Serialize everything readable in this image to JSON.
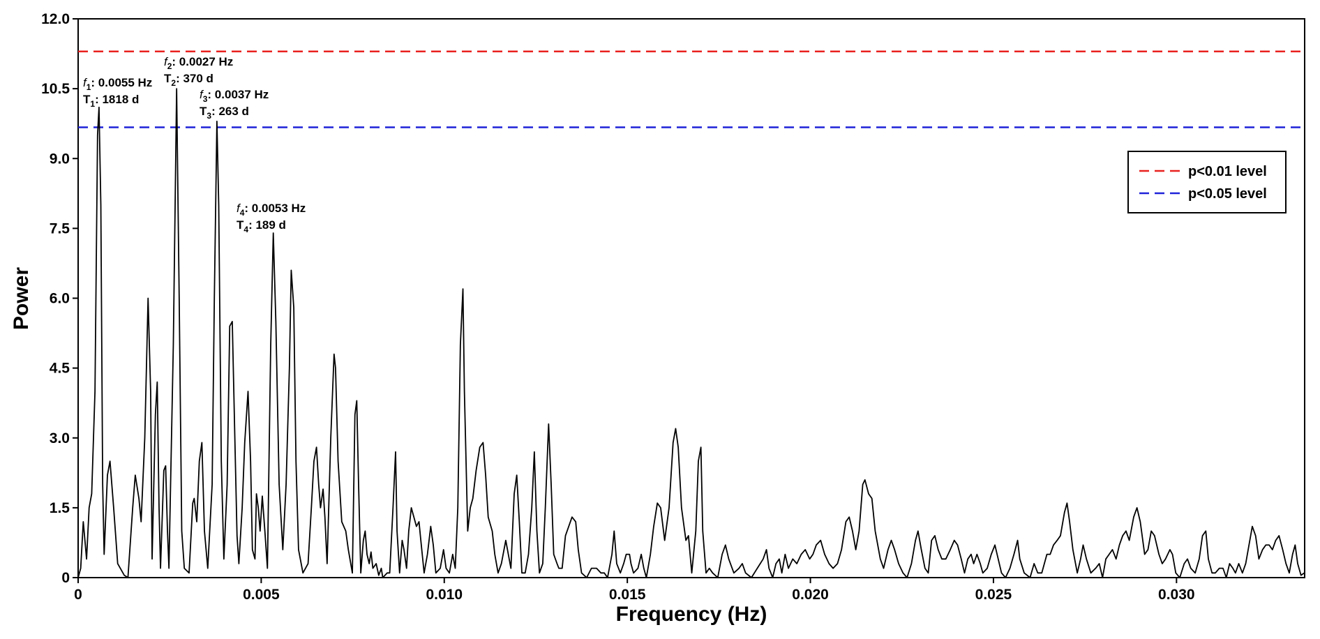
{
  "chart_data": {
    "type": "line",
    "xlabel": "Frequency (Hz)",
    "ylabel": "Power",
    "xlim": [
      0,
      0.0335
    ],
    "ylim": [
      0,
      12
    ],
    "xticks": [
      0,
      0.005,
      {
        "value": 0.01,
        "label": "0.010"
      },
      0.015,
      {
        "value": 0.02,
        "label": "0.020"
      },
      0.025,
      {
        "value": 0.03,
        "label": "0.030"
      }
    ],
    "yticks": [
      0,
      1.5,
      {
        "value": 3,
        "label": "3.0"
      },
      4.5,
      {
        "value": 6,
        "label": "6.0"
      },
      7.5,
      {
        "value": 9,
        "label": "9.0"
      },
      10.5,
      {
        "value": 12,
        "label": "12.0"
      }
    ],
    "color": "#000000",
    "x": [
      0,
      7e-05,
      0.00014,
      0.00023,
      0.0003,
      0.00037,
      0.00046,
      0.00053,
      0.00057,
      0.00062,
      0.00067,
      0.00071,
      0.0008,
      0.00087,
      0.00097,
      0.00108,
      0.00126,
      0.00136,
      0.00149,
      0.00156,
      0.00166,
      0.00172,
      0.00182,
      0.00191,
      0.00198,
      0.00202,
      0.00211,
      0.00216,
      0.00221,
      0.00225,
      0.00234,
      0.00239,
      0.00244,
      0.00248,
      0.0026,
      0.00269,
      0.00276,
      0.00283,
      0.0029,
      0.00303,
      0.00313,
      0.00317,
      0.00324,
      0.00331,
      0.00338,
      0.00345,
      0.00354,
      0.00366,
      0.00372,
      0.00379,
      0.00384,
      0.00391,
      0.00398,
      0.00407,
      0.00414,
      0.00421,
      0.00428,
      0.00434,
      0.00439,
      0.00448,
      0.00455,
      0.00464,
      0.00471,
      0.00476,
      0.00483,
      0.00487,
      0.00492,
      0.00497,
      0.00503,
      0.0051,
      0.00517,
      0.00526,
      0.00533,
      0.0054,
      0.00549,
      0.00559,
      0.00568,
      0.00577,
      0.00582,
      0.00589,
      0.00595,
      0.00602,
      0.00614,
      0.00628,
      0.00637,
      0.00644,
      0.00651,
      0.00657,
      0.00662,
      0.00669,
      0.00674,
      0.0068,
      0.0069,
      0.00699,
      0.00703,
      0.0071,
      0.0072,
      0.00731,
      0.00738,
      0.00749,
      0.00756,
      0.00761,
      0.00766,
      0.00772,
      0.00779,
      0.00784,
      0.00789,
      0.00795,
      0.008,
      0.00805,
      0.00814,
      0.00821,
      0.00828,
      0.00832,
      0.00844,
      0.00851,
      0.0086,
      0.00867,
      0.00871,
      0.00878,
      0.00885,
      0.0089,
      0.00897,
      0.00903,
      0.0091,
      0.00917,
      0.00924,
      0.00931,
      0.00936,
      0.00945,
      0.00954,
      0.00963,
      0.0097,
      0.00977,
      0.00989,
      0.00998,
      0.01005,
      0.01014,
      0.01023,
      0.0103,
      0.01037,
      0.01044,
      0.01051,
      0.01055,
      0.01064,
      0.01071,
      0.01078,
      0.01087,
      0.01097,
      0.01106,
      0.01113,
      0.0112,
      0.01131,
      0.01138,
      0.01147,
      0.01156,
      0.01168,
      0.01175,
      0.01182,
      0.01191,
      0.01198,
      0.01205,
      0.01212,
      0.01221,
      0.0123,
      0.01239,
      0.01246,
      0.01253,
      0.0126,
      0.01269,
      0.01276,
      0.01285,
      0.01292,
      0.01299,
      0.01308,
      0.01313,
      0.01322,
      0.01331,
      0.0134,
      0.01349,
      0.01359,
      0.01366,
      0.01375,
      0.01389,
      0.01402,
      0.01416,
      0.01428,
      0.01437,
      0.01446,
      0.01458,
      0.01464,
      0.01471,
      0.01481,
      0.0149,
      0.01497,
      0.01506,
      0.0151,
      0.01517,
      0.01529,
      0.01538,
      0.01545,
      0.01552,
      0.01563,
      0.01572,
      0.01582,
      0.01591,
      0.01602,
      0.01614,
      0.01625,
      0.01632,
      0.01639,
      0.01648,
      0.0166,
      0.01667,
      0.01676,
      0.01687,
      0.01694,
      0.01701,
      0.01706,
      0.01715,
      0.01724,
      0.01733,
      0.01747,
      0.01759,
      0.01768,
      0.01777,
      0.01791,
      0.01805,
      0.01814,
      0.01823,
      0.01839,
      0.01855,
      0.01871,
      0.0188,
      0.01887,
      0.01897,
      0.01906,
      0.01915,
      0.01922,
      0.01931,
      0.0194,
      0.01952,
      0.01963,
      0.01975,
      0.01986,
      0.01998,
      0.02007,
      0.02016,
      0.02028,
      0.02039,
      0.02051,
      0.02062,
      0.02074,
      0.02085,
      0.02097,
      0.02106,
      0.02115,
      0.02124,
      0.02133,
      0.02143,
      0.02149,
      0.02159,
      0.02168,
      0.02177,
      0.02191,
      0.022,
      0.02212,
      0.02221,
      0.0223,
      0.02241,
      0.02253,
      0.02264,
      0.02276,
      0.02287,
      0.02294,
      0.02303,
      0.02313,
      0.02322,
      0.02331,
      0.0234,
      0.02349,
      0.02359,
      0.0237,
      0.02382,
      0.02393,
      0.02402,
      0.02412,
      0.02421,
      0.0243,
      0.02439,
      0.02446,
      0.02455,
      0.02464,
      0.02471,
      0.02483,
      0.02494,
      0.02504,
      0.02513,
      0.02522,
      0.02533,
      0.02545,
      0.02556,
      0.02566,
      0.02572,
      0.02584,
      0.026,
      0.02611,
      0.02621,
      0.02632,
      0.02646,
      0.02655,
      0.02664,
      0.02674,
      0.02683,
      0.02694,
      0.02701,
      0.02708,
      0.02717,
      0.02729,
      0.02738,
      0.02745,
      0.02754,
      0.02766,
      0.02779,
      0.02789,
      0.02798,
      0.02807,
      0.02816,
      0.02825,
      0.02835,
      0.02844,
      0.02853,
      0.02862,
      0.02871,
      0.02883,
      0.02892,
      0.02901,
      0.02913,
      0.02922,
      0.02931,
      0.0294,
      0.02952,
      0.02961,
      0.0297,
      0.02982,
      0.02989,
      0.02998,
      0.03009,
      0.03021,
      0.0303,
      0.03039,
      0.03051,
      0.03062,
      0.03071,
      0.0308,
      0.03087,
      0.03097,
      0.03106,
      0.03117,
      0.03127,
      0.03136,
      0.03145,
      0.03154,
      0.03161,
      0.0317,
      0.0318,
      0.03189,
      0.03198,
      0.03207,
      0.03216,
      0.03225,
      0.03235,
      0.03244,
      0.03253,
      0.03262,
      0.03271,
      0.0328,
      0.0329,
      0.03299,
      0.03308,
      0.03317,
      0.03324,
      0.03331,
      0.0334,
      0.03349
    ],
    "values": [
      0,
      0.2,
      1.2,
      0.4,
      1.5,
      1.8,
      4,
      9.5,
      10.1,
      8,
      2,
      0.5,
      2.2,
      2.5,
      1.5,
      0.3,
      0.05,
      0,
      1.5,
      2.2,
      1.7,
      1.2,
      3,
      6,
      4,
      0.4,
      3.5,
      4.2,
      1.5,
      0.2,
      2.3,
      2.4,
      1,
      0.2,
      5,
      10.5,
      6,
      1,
      0.2,
      0.1,
      1.6,
      1.7,
      1.2,
      2.5,
      2.9,
      1,
      0.2,
      2,
      6,
      9.8,
      8,
      2.5,
      0.4,
      2,
      5.4,
      5.5,
      3,
      0.9,
      0.3,
      1.5,
      2.9,
      4,
      2.5,
      0.6,
      0.4,
      1.8,
      1.5,
      1,
      1.75,
      1,
      0.2,
      5,
      7.4,
      5.5,
      2,
      0.6,
      2,
      4.5,
      6.6,
      5.8,
      2.5,
      0.6,
      0.1,
      0.3,
      1.5,
      2.5,
      2.8,
      2,
      1.5,
      1.9,
      1.3,
      0.3,
      3,
      4.8,
      4.5,
      2.5,
      1.2,
      1,
      0.6,
      0.1,
      3.5,
      3.8,
      2,
      0.1,
      0.8,
      1,
      0.5,
      0.3,
      0.55,
      0.2,
      0.3,
      0.05,
      0.2,
      0,
      0.1,
      0.1,
      1.5,
      2.7,
      1,
      0.1,
      0.8,
      0.6,
      0.2,
      1,
      1.5,
      1.3,
      1.1,
      1.2,
      0.8,
      0.1,
      0.5,
      1.1,
      0.7,
      0.1,
      0.2,
      0.6,
      0.2,
      0.1,
      0.5,
      0.2,
      1.5,
      5,
      6.2,
      4,
      1,
      1.5,
      1.7,
      2.3,
      2.8,
      2.9,
      2.2,
      1.3,
      1,
      0.5,
      0.1,
      0.3,
      0.8,
      0.5,
      0.2,
      1.8,
      2.2,
      1.2,
      0.1,
      0.1,
      0.5,
      1.5,
      2.7,
      1,
      0.1,
      0.3,
      1.5,
      3.3,
      2,
      0.5,
      0.3,
      0.2,
      0.2,
      0.9,
      1.1,
      1.3,
      1.2,
      0.6,
      0.1,
      0,
      0.2,
      0.2,
      0.1,
      0.1,
      0,
      0.5,
      1,
      0.3,
      0.1,
      0.3,
      0.5,
      0.5,
      0.3,
      0.1,
      0.2,
      0.5,
      0.2,
      0,
      0.5,
      1.1,
      1.6,
      1.5,
      0.8,
      1.5,
      2.9,
      3.2,
      2.8,
      1.5,
      0.8,
      0.9,
      0.1,
      1,
      2.5,
      2.8,
      1,
      0.1,
      0.2,
      0.1,
      0,
      0.5,
      0.7,
      0.4,
      0.1,
      0.2,
      0.3,
      0.1,
      0,
      0.2,
      0.4,
      0.6,
      0.2,
      0,
      0.3,
      0.4,
      0.1,
      0.5,
      0.2,
      0.4,
      0.3,
      0.5,
      0.6,
      0.4,
      0.5,
      0.7,
      0.8,
      0.5,
      0.3,
      0.2,
      0.3,
      0.6,
      1.2,
      1.3,
      1,
      0.6,
      1,
      2,
      2.1,
      1.8,
      1.7,
      1,
      0.4,
      0.2,
      0.6,
      0.8,
      0.6,
      0.3,
      0.1,
      0,
      0.3,
      0.8,
      1,
      0.6,
      0.2,
      0.1,
      0.8,
      0.9,
      0.6,
      0.4,
      0.4,
      0.6,
      0.8,
      0.7,
      0.4,
      0.1,
      0.4,
      0.5,
      0.3,
      0.5,
      0.3,
      0.1,
      0.2,
      0.5,
      0.7,
      0.4,
      0.1,
      0,
      0.2,
      0.5,
      0.8,
      0.4,
      0.1,
      0,
      0.3,
      0.1,
      0.1,
      0.5,
      0.5,
      0.7,
      0.8,
      0.9,
      1.4,
      1.6,
      1.2,
      0.6,
      0.1,
      0.4,
      0.7,
      0.4,
      0.1,
      0.2,
      0.3,
      0,
      0.4,
      0.5,
      0.6,
      0.4,
      0.7,
      0.9,
      1,
      0.8,
      1.3,
      1.5,
      1.2,
      0.5,
      0.6,
      1,
      0.9,
      0.5,
      0.3,
      0.4,
      0.6,
      0.5,
      0.1,
      0,
      0.3,
      0.4,
      0.2,
      0.1,
      0.4,
      0.9,
      1,
      0.4,
      0.1,
      0.1,
      0.2,
      0.2,
      0,
      0.3,
      0.2,
      0.1,
      0.3,
      0.1,
      0.3,
      0.7,
      1.1,
      0.9,
      0.4,
      0.6,
      0.7,
      0.7,
      0.6,
      0.8,
      0.9,
      0.6,
      0.3,
      0.1,
      0.5,
      0.7,
      0.3,
      0.05,
      0.1
    ],
    "hlines": [
      {
        "name": "p<0.01 level",
        "value": 11.3,
        "color": "#e8211f"
      },
      {
        "name": "p<0.05 level",
        "value": 9.67,
        "color": "#1f22d8"
      }
    ],
    "legend_position": "upper right",
    "annotations": [
      {
        "lines": [
          {
            "symbol": "f",
            "sub": "1",
            "text": ": 0.0055 Hz"
          },
          {
            "symbol": "T",
            "sub": "1",
            "text": ": 1818 d"
          }
        ]
      },
      {
        "lines": [
          {
            "symbol": "f",
            "sub": "2",
            "text": ": 0.0027 Hz"
          },
          {
            "symbol": "T",
            "sub": "2",
            "text": ": 370 d"
          }
        ]
      },
      {
        "lines": [
          {
            "symbol": "f",
            "sub": "3",
            "text": ": 0.0037 Hz"
          },
          {
            "symbol": "T",
            "sub": "3",
            "text": ": 263 d"
          }
        ]
      },
      {
        "lines": [
          {
            "symbol": "f",
            "sub": "4",
            "text": ": 0.0053 Hz"
          },
          {
            "symbol": "T",
            "sub": "4",
            "text": ": 189 d"
          }
        ]
      }
    ]
  }
}
